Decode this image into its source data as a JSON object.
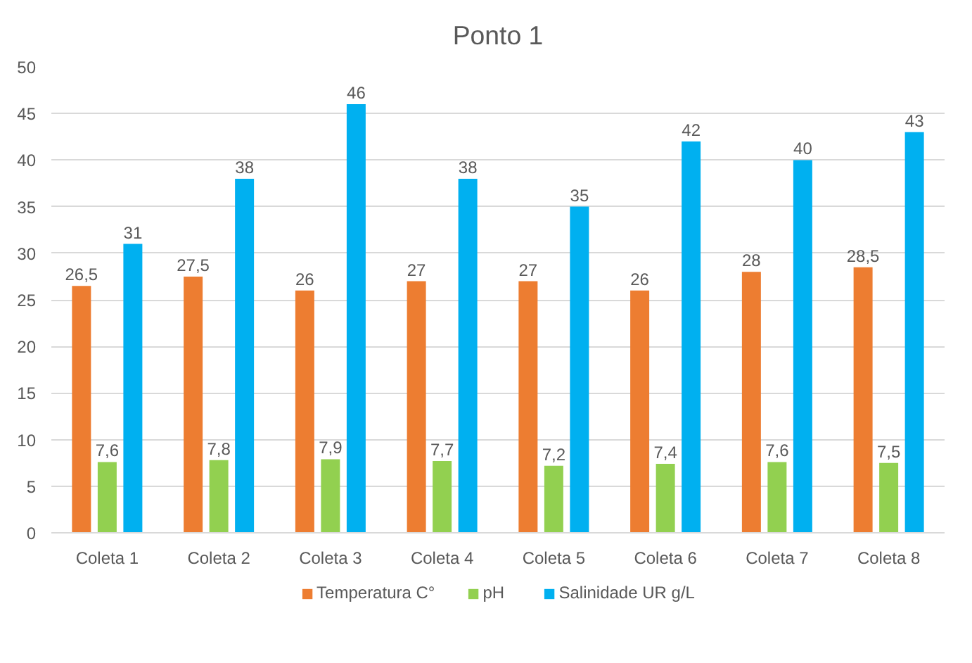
{
  "chart_data": {
    "type": "bar",
    "title": "Ponto 1",
    "categories": [
      "Coleta 1",
      "Coleta 2",
      "Coleta 3",
      "Coleta 4",
      "Coleta 5",
      "Coleta 6",
      "Coleta 7",
      "Coleta 8"
    ],
    "series": [
      {
        "name": "Temperatura C°",
        "color": "#ed7d31",
        "values": [
          26.5,
          27.5,
          26,
          27,
          27,
          26,
          28,
          28.5
        ],
        "value_labels": [
          "26,5",
          "27,5",
          "26",
          "27",
          "27",
          "26",
          "28",
          "28,5"
        ]
      },
      {
        "name": "pH",
        "color": "#92d050",
        "values": [
          7.6,
          7.8,
          7.9,
          7.7,
          7.2,
          7.4,
          7.6,
          7.5
        ],
        "value_labels": [
          "7,6",
          "7,8",
          "7,9",
          "7,7",
          "7,2",
          "7,4",
          "7,6",
          "7,5"
        ]
      },
      {
        "name": "Salinidade UR g/L",
        "color": "#00b0f0",
        "values": [
          31,
          38,
          46,
          38,
          35,
          42,
          40,
          43
        ],
        "value_labels": [
          "31",
          "38",
          "46",
          "38",
          "35",
          "42",
          "40",
          "43"
        ]
      }
    ],
    "ylim": [
      0,
      50
    ],
    "yticks": [
      0,
      5,
      10,
      15,
      20,
      25,
      30,
      35,
      40,
      45,
      50
    ],
    "grid": "y",
    "legend": "bottom"
  }
}
